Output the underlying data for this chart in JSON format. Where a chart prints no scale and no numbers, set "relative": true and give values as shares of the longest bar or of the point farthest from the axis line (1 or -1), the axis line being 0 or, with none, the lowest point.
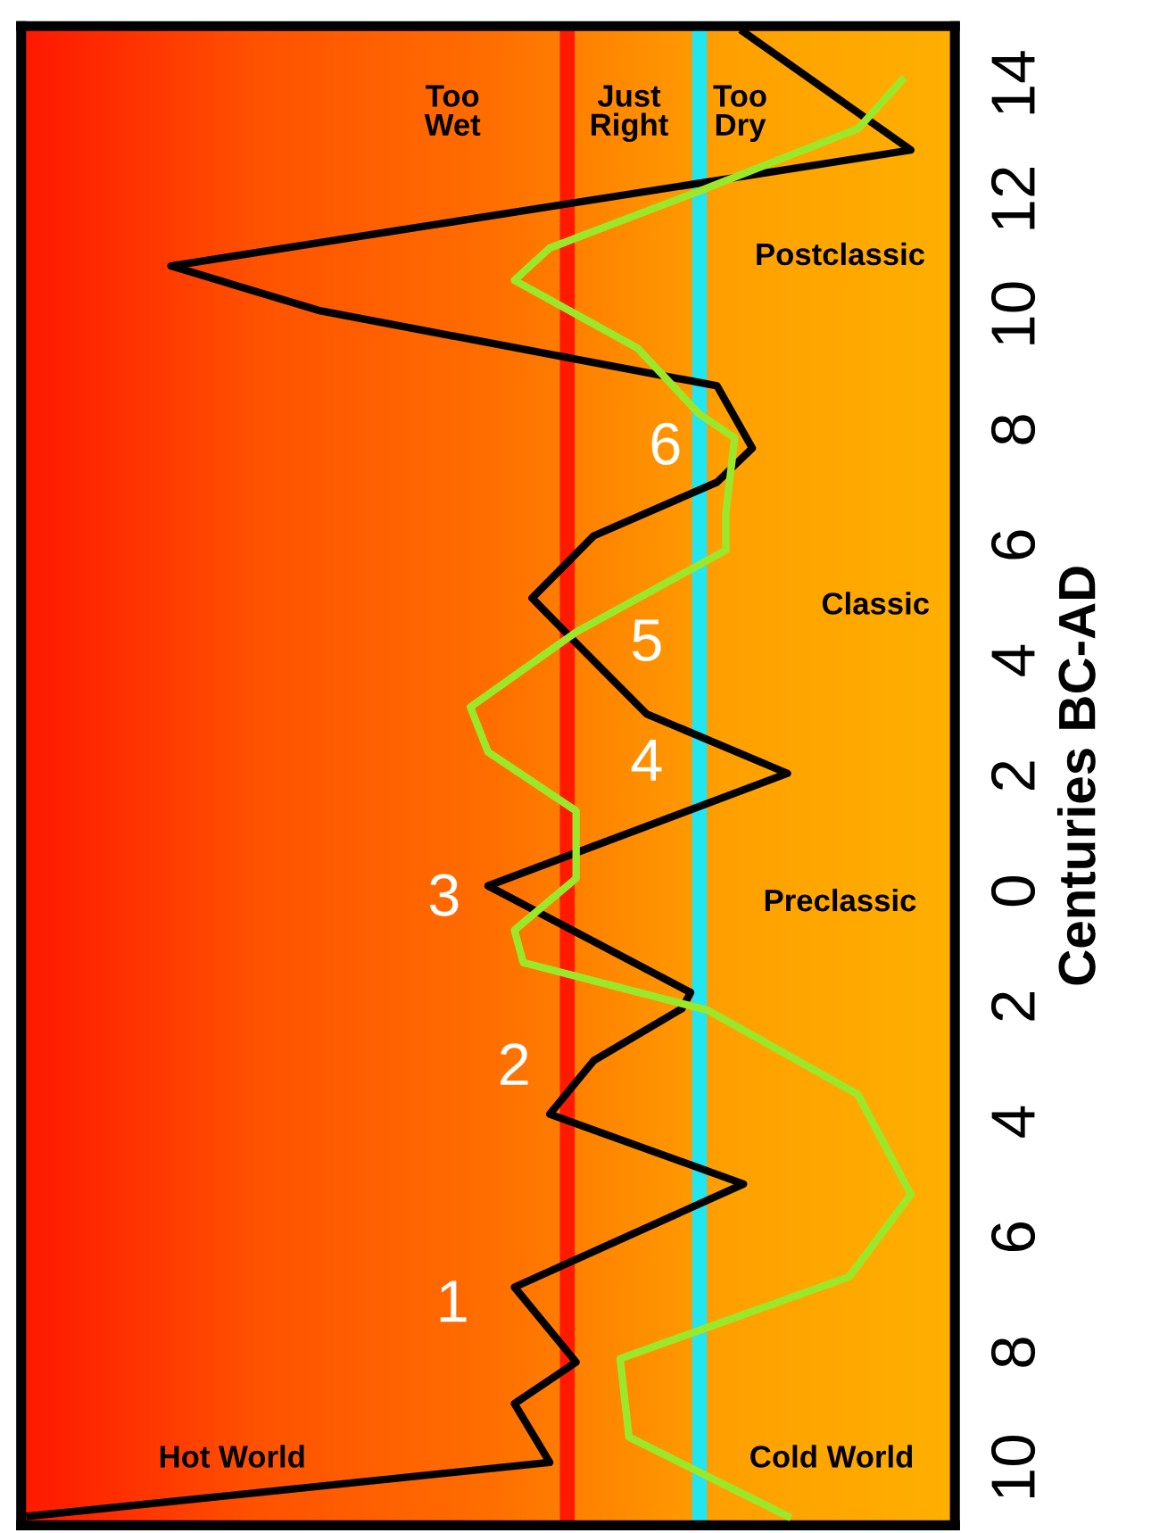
{
  "chart_data": {
    "type": "line",
    "orientation": "horizontal",
    "relative": true,
    "ylabel": "Centuries BC-AD",
    "ylim": [
      -11,
      15
    ],
    "yticks": [
      {
        "value": -10,
        "label": "10"
      },
      {
        "value": -8,
        "label": "8"
      },
      {
        "value": -6,
        "label": "6"
      },
      {
        "value": -4,
        "label": "4"
      },
      {
        "value": -2,
        "label": "2"
      },
      0,
      2,
      4,
      6,
      8,
      10,
      12,
      14
    ],
    "series": [
      {
        "color": "#000000",
        "x": [
          14.9,
          12.85,
          10.84,
          10.06,
          8.76,
          7.68,
          7.09,
          6.16,
          5.08,
          4.3,
          3.07,
          2.04,
          0.09,
          -1.76,
          -2.04,
          -2.94,
          -3.87,
          -5.08,
          -6.87,
          -8.17,
          -8.89,
          -9.91,
          -10.84
        ],
        "values": [
          0.81,
          1.0,
          0.16,
          0.33,
          0.78,
          0.82,
          0.78,
          0.64,
          0.57,
          0.62,
          0.7,
          0.86,
          0.52,
          0.75,
          0.74,
          0.64,
          0.59,
          0.81,
          0.55,
          0.62,
          0.55,
          0.59,
          0.0
        ]
      },
      {
        "color": "#9be82a",
        "x": [
          14.06,
          13.22,
          12.14,
          11.15,
          10.59,
          9.41,
          8.27,
          7.86,
          6.56,
          5.91,
          4.49,
          3.19,
          2.41,
          1.39,
          0.22,
          -0.68,
          -1.24,
          -2.07,
          -3.53,
          -5.26,
          -6.69,
          -8.11,
          -9.47,
          -10.84
        ],
        "values": [
          0.99,
          0.94,
          0.76,
          0.59,
          0.55,
          0.69,
          0.76,
          0.8,
          0.79,
          0.79,
          0.62,
          0.5,
          0.52,
          0.62,
          0.62,
          0.55,
          0.56,
          0.77,
          0.94,
          1.0,
          0.93,
          0.67,
          0.68,
          0.86
        ]
      }
    ],
    "ref_lines": [
      {
        "axis": "x",
        "value": 0.61,
        "color": "#ff1a00"
      },
      {
        "axis": "x",
        "value": 0.76,
        "color": "#22e5f0"
      }
    ],
    "annotations": [
      "1",
      "2",
      "3",
      "4",
      "5",
      "6",
      "Too\nWet",
      "Just\nRight",
      "Too\nDry",
      "Postclassic",
      "Classic",
      "Preclassic",
      "Hot World",
      "Cold World"
    ],
    "grid": false,
    "legend": false
  }
}
